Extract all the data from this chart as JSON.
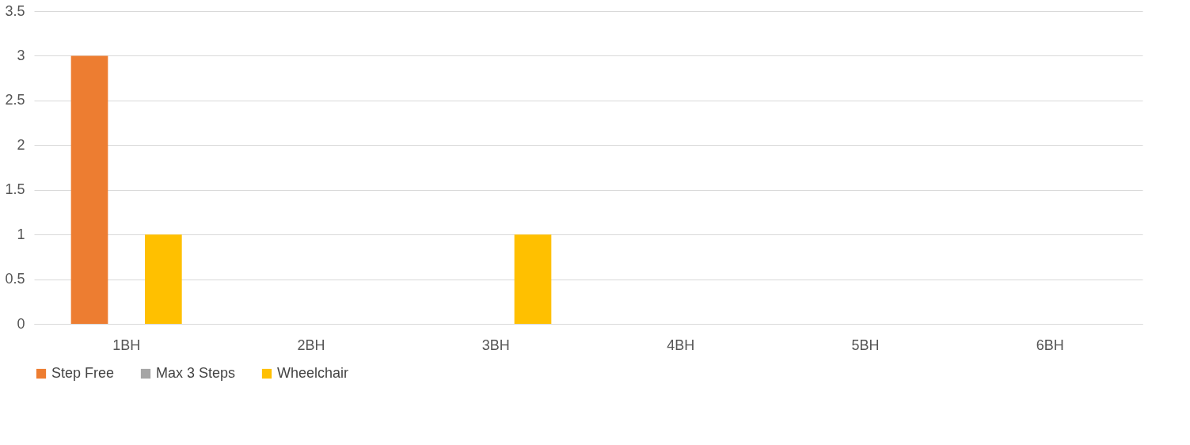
{
  "chart_data": {
    "type": "bar",
    "categories": [
      "1BH",
      "2BH",
      "3BH",
      "4BH",
      "5BH",
      "6BH"
    ],
    "series": [
      {
        "name": "Step Free",
        "color": "#ed7d31",
        "values": [
          3,
          0,
          0,
          0,
          0,
          0
        ]
      },
      {
        "name": "Max 3 Steps",
        "color": "#a5a5a5",
        "values": [
          0,
          0,
          0,
          0,
          0,
          0
        ]
      },
      {
        "name": "Wheelchair",
        "color": "#ffc000",
        "values": [
          1,
          0,
          1,
          0,
          0,
          0
        ]
      }
    ],
    "ylim": [
      0,
      3.5
    ],
    "yticks": [
      0,
      0.5,
      1,
      1.5,
      2,
      2.5,
      3,
      3.5
    ],
    "grid": "y",
    "legend": "bottom"
  }
}
